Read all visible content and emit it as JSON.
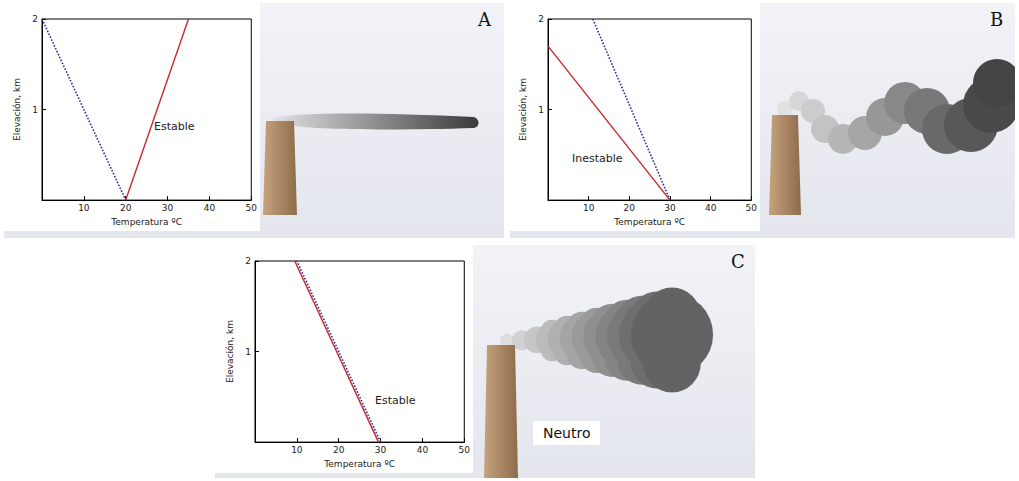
{
  "chart_data": [
    {
      "panel": "A",
      "type": "line",
      "x_label": "Temperatura ºC",
      "y_label": "Elevación, km",
      "annotation": "Estable",
      "xlim": [
        0,
        50
      ],
      "xticks": [
        10,
        20,
        30,
        40,
        50
      ],
      "ylim": [
        0,
        2
      ],
      "yticks": [
        1,
        2
      ],
      "series": [
        {
          "color": "#2e2e9e",
          "line_style": "dotted",
          "x": [
            0,
            20
          ],
          "values": [
            2,
            0
          ]
        },
        {
          "color": "#c8282d",
          "line_style": "solid",
          "x": [
            20,
            35
          ],
          "values": [
            0,
            2
          ]
        }
      ]
    },
    {
      "panel": "B",
      "type": "line",
      "x_label": "Temperatura ºC",
      "y_label": "Elevación, km",
      "annotation": "Inestable",
      "xlim": [
        0,
        50
      ],
      "xticks": [
        10,
        20,
        30,
        40,
        50
      ],
      "ylim": [
        0,
        2
      ],
      "yticks": [
        1,
        2
      ],
      "series": [
        {
          "color": "#2e2e9e",
          "line_style": "dotted",
          "x": [
            30,
            11
          ],
          "values": [
            0,
            2
          ]
        },
        {
          "color": "#c8282d",
          "line_style": "solid",
          "x": [
            30,
            0
          ],
          "values": [
            0,
            1.7
          ]
        }
      ]
    },
    {
      "panel": "C",
      "type": "line",
      "x_label": "Temperatura ºC",
      "y_label": "Elevación, km",
      "annotation": "Estable",
      "plume_label": "Neutro",
      "xlim": [
        0,
        50
      ],
      "xticks": [
        10,
        20,
        30,
        40,
        50
      ],
      "ylim": [
        0,
        2
      ],
      "yticks": [
        1,
        2
      ],
      "series": [
        {
          "color": "#2e2e9e",
          "line_style": "dotted",
          "x": [
            30,
            10
          ],
          "values": [
            0,
            2
          ]
        },
        {
          "color": "#c8282d",
          "line_style": "solid",
          "x": [
            29.5,
            9.5
          ],
          "values": [
            0,
            2
          ]
        }
      ]
    }
  ]
}
